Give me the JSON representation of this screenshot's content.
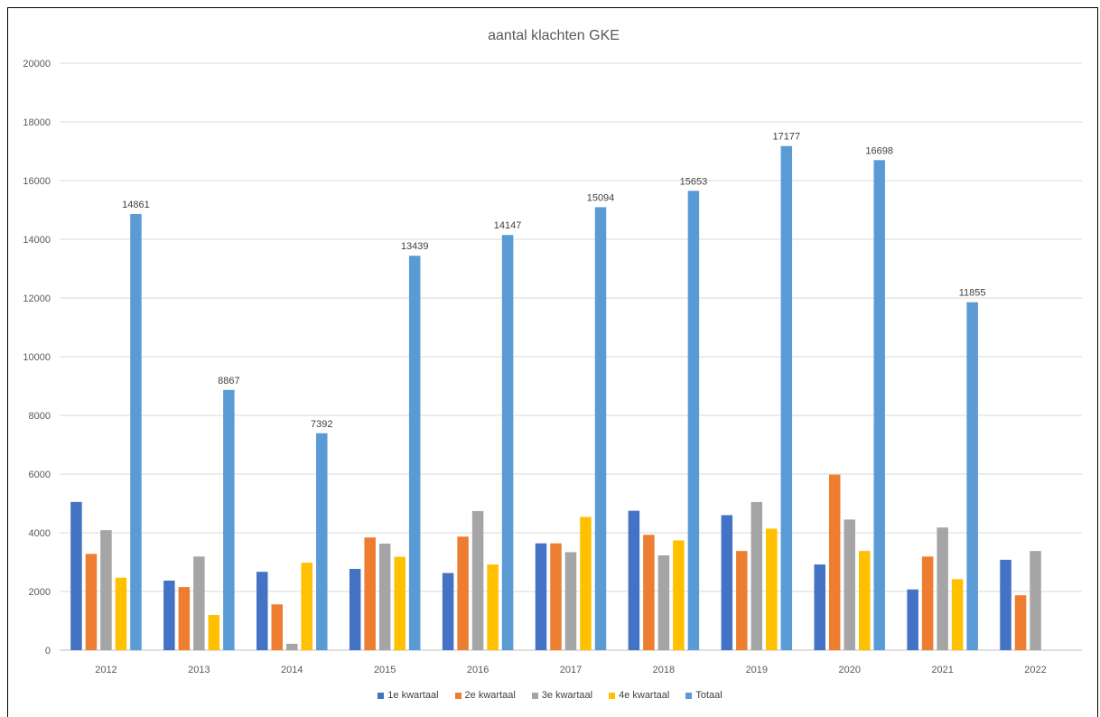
{
  "chart_data": {
    "type": "bar",
    "title": "aantal klachten GKE",
    "xlabel": "",
    "ylabel": "",
    "ylim": [
      0,
      20000
    ],
    "yticks": [
      0,
      2000,
      4000,
      6000,
      8000,
      10000,
      12000,
      14000,
      16000,
      18000,
      20000
    ],
    "grid": true,
    "legend_position": "bottom",
    "categories": [
      "2012",
      "2013",
      "2014",
      "2015",
      "2016",
      "2017",
      "2018",
      "2019",
      "2020",
      "2021",
      "2022"
    ],
    "series": [
      {
        "name": "1e kwartaal",
        "color": "#4472C4",
        "values": [
          5050,
          2370,
          2670,
          2770,
          2630,
          3640,
          4750,
          4600,
          2920,
          2070,
          3080
        ]
      },
      {
        "name": "2e kwartaal",
        "color": "#ED7D31",
        "values": [
          3280,
          2150,
          1560,
          3840,
          3870,
          3640,
          3930,
          3380,
          5980,
          3190,
          1870
        ]
      },
      {
        "name": "3e kwartaal",
        "color": "#A5A5A5",
        "values": [
          4090,
          3190,
          220,
          3630,
          4740,
          3340,
          3230,
          5050,
          4450,
          4180,
          3380
        ]
      },
      {
        "name": "4e kwartaal",
        "color": "#FFC000",
        "values": [
          2470,
          1200,
          2980,
          3180,
          2920,
          4540,
          3740,
          4140,
          3380,
          2420,
          null
        ]
      },
      {
        "name": "Totaal",
        "color": "#5B9BD5",
        "values": [
          14861,
          8867,
          7392,
          13439,
          14147,
          15094,
          15653,
          17177,
          16698,
          11855,
          null
        ],
        "data_labels": [
          "14861",
          "8867",
          "7392",
          "13439",
          "14147",
          "15094",
          "15653",
          "17177",
          "16698",
          "11855",
          ""
        ]
      }
    ]
  }
}
